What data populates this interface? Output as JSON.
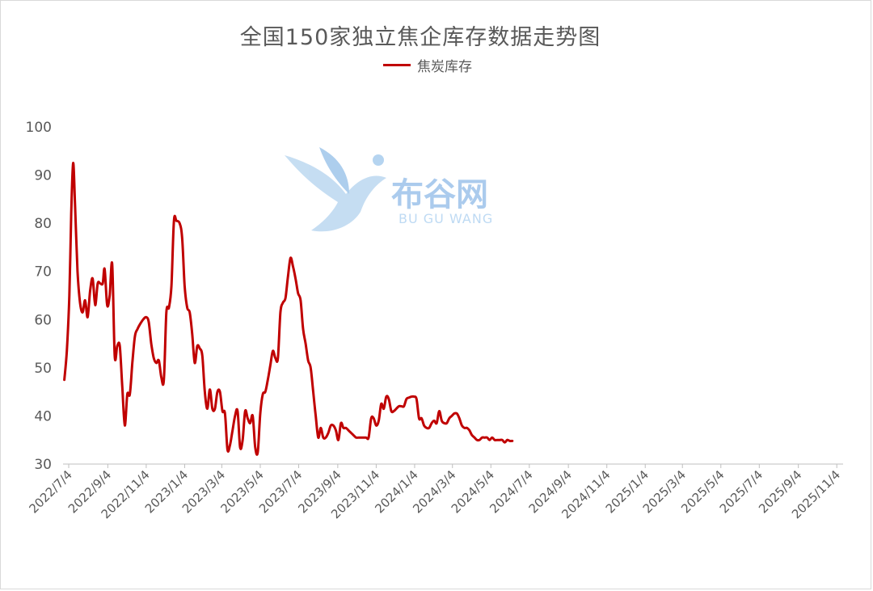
{
  "chart_data": {
    "type": "line",
    "title": "全国150家独立焦企库存数据走势图",
    "ylim": [
      30,
      100
    ],
    "yticks": [
      30,
      40,
      50,
      60,
      70,
      80,
      90,
      100
    ],
    "xticks": [
      "2022/7/4",
      "2022/9/4",
      "2022/11/4",
      "2023/1/4",
      "2023/3/4",
      "2023/5/4",
      "2023/7/4",
      "2023/9/4",
      "2023/11/4",
      "2024/1/4",
      "2024/3/4",
      "2024/5/4",
      "2024/7/4",
      "2024/9/4",
      "2024/11/4",
      "2025/1/4",
      "2025/3/4",
      "2025/5/4",
      "2025/7/4",
      "2025/9/4",
      "2025/11/4"
    ],
    "xlim": [
      "2022-06-25",
      "2025-11-14"
    ],
    "grid": false,
    "legend_position": "top-center",
    "series": [
      {
        "name": "焦炭库存",
        "color": "#c00000",
        "points": [
          [
            "2022-06-27",
            47.5
          ],
          [
            "2022-07-01",
            53.5
          ],
          [
            "2022-07-05",
            65
          ],
          [
            "2022-07-08",
            82
          ],
          [
            "2022-07-11",
            92.5
          ],
          [
            "2022-07-14",
            84
          ],
          [
            "2022-07-18",
            70
          ],
          [
            "2022-07-22",
            63.5
          ],
          [
            "2022-07-26",
            61.5
          ],
          [
            "2022-07-30",
            64
          ],
          [
            "2022-08-03",
            60.5
          ],
          [
            "2022-08-07",
            66
          ],
          [
            "2022-08-11",
            68.5
          ],
          [
            "2022-08-15",
            63
          ],
          [
            "2022-08-19",
            67.5
          ],
          [
            "2022-08-23",
            67.5
          ],
          [
            "2022-08-27",
            67.5
          ],
          [
            "2022-08-30",
            70.5
          ],
          [
            "2022-09-03",
            63
          ],
          [
            "2022-09-07",
            65
          ],
          [
            "2022-09-11",
            71.5
          ],
          [
            "2022-09-15",
            52.5
          ],
          [
            "2022-09-19",
            54.5
          ],
          [
            "2022-09-23",
            54.5
          ],
          [
            "2022-09-27",
            46
          ],
          [
            "2022-10-01",
            38
          ],
          [
            "2022-10-05",
            44.5
          ],
          [
            "2022-10-09",
            44.5
          ],
          [
            "2022-10-13",
            51
          ],
          [
            "2022-10-17",
            56.5
          ],
          [
            "2022-10-21",
            58
          ],
          [
            "2022-10-25",
            59
          ],
          [
            "2022-10-30",
            60
          ],
          [
            "2022-11-04",
            60.5
          ],
          [
            "2022-11-08",
            59.5
          ],
          [
            "2022-11-12",
            55
          ],
          [
            "2022-11-16",
            52
          ],
          [
            "2022-11-20",
            51
          ],
          [
            "2022-11-24",
            51.5
          ],
          [
            "2022-11-28",
            48
          ],
          [
            "2022-12-02",
            47.5
          ],
          [
            "2022-12-06",
            61.5
          ],
          [
            "2022-12-10",
            62.5
          ],
          [
            "2022-12-14",
            67
          ],
          [
            "2022-12-18",
            80.5
          ],
          [
            "2022-12-22",
            80.5
          ],
          [
            "2022-12-27",
            80
          ],
          [
            "2022-12-31",
            77
          ],
          [
            "2023-01-04",
            67
          ],
          [
            "2023-01-08",
            62.5
          ],
          [
            "2023-01-12",
            61.5
          ],
          [
            "2023-01-16",
            57
          ],
          [
            "2023-01-20",
            51
          ],
          [
            "2023-01-24",
            54.5
          ],
          [
            "2023-01-28",
            54
          ],
          [
            "2023-02-01",
            52.5
          ],
          [
            "2023-02-05",
            45
          ],
          [
            "2023-02-09",
            41.5
          ],
          [
            "2023-02-13",
            45.5
          ],
          [
            "2023-02-17",
            41.5
          ],
          [
            "2023-02-21",
            41.5
          ],
          [
            "2023-02-25",
            45
          ],
          [
            "2023-03-01",
            45
          ],
          [
            "2023-03-05",
            41
          ],
          [
            "2023-03-09",
            40.5
          ],
          [
            "2023-03-13",
            33
          ],
          [
            "2023-03-17",
            34
          ],
          [
            "2023-03-21",
            37
          ],
          [
            "2023-03-25",
            40
          ],
          [
            "2023-03-29",
            41
          ],
          [
            "2023-04-02",
            33.5
          ],
          [
            "2023-04-06",
            35
          ],
          [
            "2023-04-10",
            41
          ],
          [
            "2023-04-14",
            39.5
          ],
          [
            "2023-04-18",
            38.5
          ],
          [
            "2023-04-22",
            40
          ],
          [
            "2023-04-26",
            33.5
          ],
          [
            "2023-04-30",
            32.5
          ],
          [
            "2023-05-04",
            40.5
          ],
          [
            "2023-05-08",
            44.5
          ],
          [
            "2023-05-12",
            45
          ],
          [
            "2023-05-16",
            47.5
          ],
          [
            "2023-05-20",
            50.5
          ],
          [
            "2023-05-24",
            53.5
          ],
          [
            "2023-05-28",
            52
          ],
          [
            "2023-06-01",
            52
          ],
          [
            "2023-06-05",
            61.5
          ],
          [
            "2023-06-09",
            63.5
          ],
          [
            "2023-06-13",
            64.5
          ],
          [
            "2023-06-17",
            69
          ],
          [
            "2023-06-21",
            72.8
          ],
          [
            "2023-06-25",
            71
          ],
          [
            "2023-06-29",
            68.5
          ],
          [
            "2023-07-03",
            65.5
          ],
          [
            "2023-07-07",
            64
          ],
          [
            "2023-07-11",
            58
          ],
          [
            "2023-07-15",
            55
          ],
          [
            "2023-07-19",
            51.5
          ],
          [
            "2023-07-23",
            50
          ],
          [
            "2023-07-27",
            45
          ],
          [
            "2023-07-31",
            40
          ],
          [
            "2023-08-04",
            35.5
          ],
          [
            "2023-08-08",
            37.5
          ],
          [
            "2023-08-12",
            35.5
          ],
          [
            "2023-08-16",
            35.5
          ],
          [
            "2023-08-20",
            36.5
          ],
          [
            "2023-08-24",
            38
          ],
          [
            "2023-08-28",
            38
          ],
          [
            "2023-09-01",
            37
          ],
          [
            "2023-09-05",
            35
          ],
          [
            "2023-09-09",
            38.5
          ],
          [
            "2023-09-13",
            37.5
          ],
          [
            "2023-09-17",
            37.5
          ],
          [
            "2023-09-21",
            37
          ],
          [
            "2023-09-25",
            36.5
          ],
          [
            "2023-09-29",
            36
          ],
          [
            "2023-10-03",
            35.5
          ],
          [
            "2023-10-07",
            35.5
          ],
          [
            "2023-10-11",
            35.5
          ],
          [
            "2023-10-15",
            35.5
          ],
          [
            "2023-10-19",
            35.5
          ],
          [
            "2023-10-23",
            35.5
          ],
          [
            "2023-10-27",
            39.5
          ],
          [
            "2023-10-31",
            39.5
          ],
          [
            "2023-11-04",
            38
          ],
          [
            "2023-11-08",
            39
          ],
          [
            "2023-11-12",
            42.5
          ],
          [
            "2023-11-16",
            41.5
          ],
          [
            "2023-11-20",
            44
          ],
          [
            "2023-11-24",
            43.5
          ],
          [
            "2023-11-28",
            41
          ],
          [
            "2023-12-02",
            41
          ],
          [
            "2023-12-06",
            41.5
          ],
          [
            "2023-12-10",
            42
          ],
          [
            "2023-12-14",
            42
          ],
          [
            "2023-12-18",
            42
          ],
          [
            "2023-12-22",
            43.5
          ],
          [
            "2023-12-26",
            43.8
          ],
          [
            "2023-12-30",
            44
          ],
          [
            "2024-01-03",
            44
          ],
          [
            "2024-01-07",
            43.5
          ],
          [
            "2024-01-11",
            39.5
          ],
          [
            "2024-01-15",
            39.5
          ],
          [
            "2024-01-19",
            38
          ],
          [
            "2024-01-23",
            37.5
          ],
          [
            "2024-01-27",
            37.5
          ],
          [
            "2024-01-31",
            38.5
          ],
          [
            "2024-02-04",
            39
          ],
          [
            "2024-02-08",
            38.5
          ],
          [
            "2024-02-12",
            41
          ],
          [
            "2024-02-16",
            39
          ],
          [
            "2024-02-20",
            38.5
          ],
          [
            "2024-02-24",
            38.5
          ],
          [
            "2024-02-28",
            39.5
          ],
          [
            "2024-03-03",
            40
          ],
          [
            "2024-03-07",
            40.5
          ],
          [
            "2024-03-11",
            40.5
          ],
          [
            "2024-03-15",
            39.5
          ],
          [
            "2024-03-19",
            38
          ],
          [
            "2024-03-23",
            37.5
          ],
          [
            "2024-03-27",
            37.5
          ],
          [
            "2024-03-31",
            37
          ],
          [
            "2024-04-04",
            36
          ],
          [
            "2024-04-08",
            35.5
          ],
          [
            "2024-04-12",
            35
          ],
          [
            "2024-04-16",
            35
          ],
          [
            "2024-04-20",
            35.5
          ],
          [
            "2024-04-24",
            35.5
          ],
          [
            "2024-04-28",
            35.5
          ],
          [
            "2024-05-02",
            35
          ],
          [
            "2024-05-06",
            35.5
          ],
          [
            "2024-05-10",
            35
          ],
          [
            "2024-05-14",
            35
          ],
          [
            "2024-05-18",
            35
          ],
          [
            "2024-05-22",
            35
          ],
          [
            "2024-05-26",
            34.5
          ],
          [
            "2024-05-30",
            35
          ],
          [
            "2024-06-03",
            34.8
          ],
          [
            "2024-06-07",
            34.8
          ]
        ]
      }
    ]
  },
  "watermark": {
    "cn": "布谷网",
    "en": "BU GU WANG"
  }
}
